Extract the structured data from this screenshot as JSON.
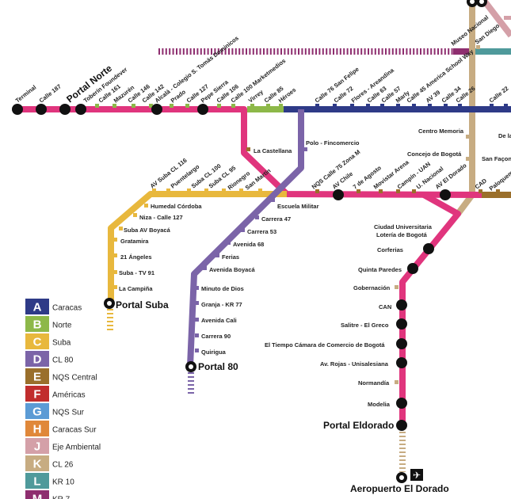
{
  "colors": {
    "A": "#2e3a87",
    "B": "#8db849",
    "C": "#e8b83d",
    "D": "#7b64a8",
    "E": "#9a6f2b",
    "F": "#c12d2d",
    "G": "#5b9bd5",
    "H": "#e0883a",
    "J": "#d4a0a8",
    "K": "#c7ac82",
    "L": "#4f9a9b",
    "M": "#8e2e6f",
    "NQS": "#e0357d"
  },
  "legend": [
    {
      "code": "A",
      "label": "Caracas"
    },
    {
      "code": "B",
      "label": "Norte"
    },
    {
      "code": "C",
      "label": "Suba"
    },
    {
      "code": "D",
      "label": "CL 80"
    },
    {
      "code": "E",
      "label": "NQS Central"
    },
    {
      "code": "F",
      "label": "Américas"
    },
    {
      "code": "G",
      "label": "NQS Sur"
    },
    {
      "code": "H",
      "label": "Caracas Sur"
    },
    {
      "code": "J",
      "label": "Eje Ambiental"
    },
    {
      "code": "K",
      "label": "CL 26"
    },
    {
      "code": "L",
      "label": "KR 10"
    },
    {
      "code": "M",
      "label": "KR 7"
    }
  ],
  "terminals": {
    "portal_norte": "Portal Norte",
    "portal_suba": "Portal Suba",
    "portal_80": "Portal 80",
    "portal_eldorado": "Portal Eldorado",
    "aeropuerto": "Aeropuerto El Dorado"
  },
  "stations": {
    "terminal": "Terminal",
    "calle187": "Calle 187",
    "toberin": "Toberín Foundever",
    "calle161": "Calle 161",
    "mazuren": "Mazurén",
    "calle146": "Calle 146",
    "calle142": "Calle 142",
    "alcala": "Alcalá - Colegio S. Tomás Dominicos",
    "prado": "Prado",
    "calle127": "Calle 127",
    "pepesierra": "Pepe Sierra",
    "calle106": "Calle 106",
    "calle100": "Calle 100 Marketmedios",
    "virrey": "Virrey",
    "calle85": "Calle 85",
    "heroes": "Héroes",
    "calle76": "Calle 76 San Felipe",
    "calle72": "Calle 72",
    "flores": "Flores - Areandina",
    "calle63": "Calle 63",
    "calle57": "Calle 57",
    "marly": "Marly",
    "calle45": "Calle 45 America School Way",
    "av39": "AV 39",
    "calle34": "Calle 34",
    "calle26": "Calle 26",
    "calle22": "Calle 22",
    "museo": "Museo Nacional",
    "sandiego": "San Diego",
    "centro": "Centro Memoria",
    "concejo": "Concejo de Bogotá",
    "sanfacon": "San Façon",
    "delas": "De la",
    "castellana": "La Castellana",
    "polo": "Polo - Fincomercio",
    "escuela": "Escuela Militar",
    "nqs75": "NQS Calle 75 Zona M",
    "avchile": "AV Chile",
    "siete": "7 de Agosto",
    "movistar": "Movistar Arena",
    "campin": "Campín - UAN",
    "unacional": "U. Nacional",
    "aveldorado": "AV El Dorado",
    "cad": "CAD",
    "paloquemao": "Paloquemao",
    "ciudad": "Ciudad Universitaria Lotería de Bogotá",
    "corferias": "Corferias",
    "quinta": "Quinta Paredes",
    "gobernacion": "Gobernación",
    "can": "CAN",
    "salitre": "Salitre - El Greco",
    "tiempo": "El Tiempo Cámara de Comercio de Bogotá",
    "rojas": "Av. Rojas - Unisalesiana",
    "normandia": "Normandía",
    "modelia": "Modelia",
    "avsuba116": "AV Suba CL 116",
    "puentelargo": "Puentelargo",
    "subacl100": "Suba CL 100",
    "subacl95": "Suba CL 95",
    "rionegro": "Rionegro",
    "sanmartin": "San Martín",
    "humedal": "Humedal Córdoba",
    "niza": "Niza - Calle 127",
    "subaboyaca": "Suba AV Boyacá",
    "gratamira": "Gratamira",
    "angeles": "21 Ángeles",
    "subatv": "Suba - TV 91",
    "campina": "La Campiña",
    "carrera47": "Carrera 47",
    "carrera53": "Carrera 53",
    "avenida68": "Avenida 68",
    "ferias": "Ferias",
    "avboyaca": "Avenida Boyacá",
    "minuto": "Minuto de Dios",
    "granja": "Granja - KR 77",
    "avcali": "Avenida Cali",
    "carrera90": "Carrera 90",
    "quirigua": "Quirigua"
  }
}
